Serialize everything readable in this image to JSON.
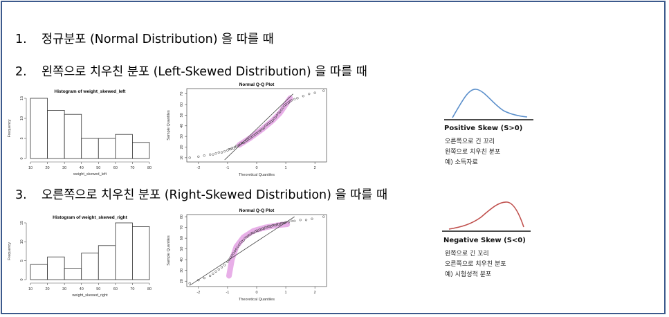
{
  "headings": [
    {
      "num": "1.",
      "text": "정규분포 (Normal Distribution) 을 따를 때"
    },
    {
      "num": "2.",
      "text": "왼쪽으로 치우친 분포 (Left-Skewed  Distribution) 을 따를 때"
    },
    {
      "num": "3.",
      "text": "오른쪽으로 치우친 분포 (Right-Skewed  Distribution) 을 따를 때"
    }
  ],
  "positive_skew": {
    "title": "Positive Skew (S>0)",
    "lines": [
      "오른쪽으로 긴 꼬리",
      "왼쪽으로 치우친 분포",
      "예) 소득자료"
    ],
    "curve_color": "#5b8fcb"
  },
  "negative_skew": {
    "title": "Negative Skew (S<0)",
    "lines": [
      "왼쪽으로 긴 꼬리",
      "오른쪽으로 치우친 분포",
      "예) 시험성적 분포"
    ],
    "curve_color": "#c0504d"
  },
  "highlight_color": "#d25fd2",
  "chart_data": [
    {
      "type": "bar",
      "title": "Histogram of weight_skewed_left",
      "xlabel": "weight_skewed_left",
      "ylabel": "Frequency",
      "bin_edges": [
        10,
        20,
        30,
        40,
        50,
        60,
        70,
        80
      ],
      "values": [
        15,
        12,
        11,
        5,
        5,
        6,
        4
      ],
      "xticks": [
        "10",
        "20",
        "30",
        "40",
        "50",
        "60",
        "70",
        "80"
      ],
      "yticks": [
        "0",
        "5",
        "10",
        "15"
      ],
      "xlim": [
        10,
        80
      ],
      "ylim": [
        0,
        15
      ]
    },
    {
      "type": "scatter",
      "title": "Normal Q-Q Plot",
      "xlabel": "Theoretical Quantiles",
      "ylabel": "Sample Quantiles",
      "xticks": [
        "-2",
        "-1",
        "0",
        "1",
        "2"
      ],
      "yticks": [
        "10",
        "20",
        "30",
        "40",
        "50",
        "60",
        "70"
      ],
      "xlim": [
        -2.4,
        2.4
      ],
      "ylim": [
        6,
        75
      ],
      "x": [
        -2.3,
        -2.0,
        -1.8,
        -1.6,
        -1.5,
        -1.4,
        -1.3,
        -1.2,
        -1.1,
        -1.0,
        -0.95,
        -0.9,
        -0.85,
        -0.8,
        -0.75,
        -0.7,
        -0.65,
        -0.6,
        -0.55,
        -0.5,
        -0.45,
        -0.4,
        -0.35,
        -0.3,
        -0.25,
        -0.2,
        -0.15,
        -0.1,
        -0.05,
        0.0,
        0.05,
        0.1,
        0.15,
        0.2,
        0.25,
        0.3,
        0.35,
        0.4,
        0.45,
        0.5,
        0.55,
        0.6,
        0.65,
        0.7,
        0.75,
        0.8,
        0.85,
        0.9,
        0.95,
        1.0,
        1.05,
        1.1,
        1.15,
        1.2,
        1.3,
        1.4,
        1.6,
        1.8,
        2.0,
        2.3
      ],
      "y": [
        10,
        11,
        12,
        13,
        13,
        14,
        15,
        15,
        16,
        17,
        18,
        18,
        19,
        19,
        20,
        21,
        21,
        22,
        23,
        24,
        24,
        25,
        26,
        27,
        28,
        29,
        30,
        31,
        32,
        33,
        34,
        35,
        36,
        37,
        38,
        40,
        41,
        42,
        43,
        44,
        45,
        47,
        48,
        50,
        52,
        53,
        55,
        57,
        59,
        60,
        61,
        62,
        63,
        64,
        65,
        66,
        68,
        70,
        71,
        73
      ],
      "line": {
        "x": [
          -1.1,
          1.25
        ],
        "y": [
          8,
          70
        ]
      }
    },
    {
      "type": "bar",
      "title": "Histogram of weight_skewed_right",
      "xlabel": "weight_skewed_right",
      "ylabel": "Frequency",
      "bin_edges": [
        10,
        20,
        30,
        40,
        50,
        60,
        70,
        80
      ],
      "values": [
        4,
        6,
        3,
        7,
        9,
        15,
        14
      ],
      "xticks": [
        "10",
        "20",
        "30",
        "40",
        "50",
        "60",
        "70",
        "80"
      ],
      "yticks": [
        "0",
        "5",
        "10",
        "15"
      ],
      "xlim": [
        10,
        80
      ],
      "ylim": [
        0,
        15
      ]
    },
    {
      "type": "scatter",
      "title": "Normal Q-Q Plot",
      "xlabel": "Theoretical Quantiles",
      "ylabel": "Sample Quantiles",
      "xticks": [
        "-2",
        "-1",
        "0",
        "1",
        "2"
      ],
      "yticks": [
        "20",
        "30",
        "40",
        "50",
        "60",
        "70",
        "80"
      ],
      "xlim": [
        -2.4,
        2.4
      ],
      "ylim": [
        15,
        82
      ],
      "x": [
        -2.3,
        -2.0,
        -1.8,
        -1.6,
        -1.5,
        -1.4,
        -1.3,
        -1.2,
        -1.1,
        -1.0,
        -0.95,
        -0.9,
        -0.85,
        -0.8,
        -0.75,
        -0.7,
        -0.65,
        -0.6,
        -0.55,
        -0.5,
        -0.45,
        -0.4,
        -0.35,
        -0.3,
        -0.25,
        -0.2,
        -0.15,
        -0.1,
        -0.05,
        0.0,
        0.05,
        0.1,
        0.15,
        0.2,
        0.25,
        0.3,
        0.35,
        0.4,
        0.45,
        0.5,
        0.55,
        0.6,
        0.65,
        0.7,
        0.75,
        0.8,
        0.85,
        0.9,
        0.95,
        1.0,
        1.1,
        1.2,
        1.3,
        1.5,
        1.7,
        1.9,
        2.3
      ],
      "y": [
        18,
        21,
        23,
        25,
        27,
        29,
        31,
        33,
        35,
        38,
        40,
        42,
        44,
        46,
        48,
        50,
        52,
        54,
        56,
        57,
        58,
        60,
        61,
        62,
        63,
        64,
        65,
        65,
        66,
        67,
        67,
        68,
        68,
        69,
        69,
        70,
        70,
        71,
        71,
        71,
        72,
        72,
        72,
        73,
        73,
        73,
        74,
        74,
        74,
        75,
        75,
        76,
        76,
        77,
        77,
        78,
        80
      ],
      "line": {
        "x": [
          -2.3,
          1.3
        ],
        "y": [
          16,
          80
        ]
      }
    }
  ]
}
